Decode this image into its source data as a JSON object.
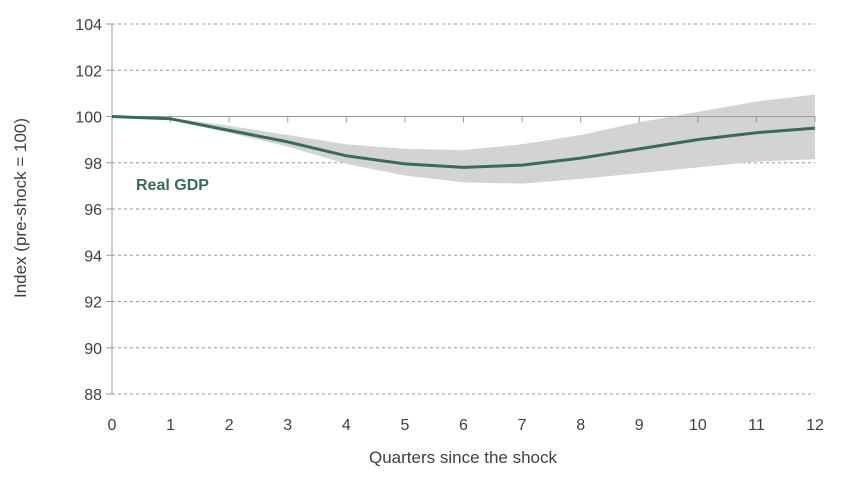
{
  "chart_data": {
    "type": "line",
    "title": "",
    "xlabel": "Quarters since the shock",
    "ylabel": "Index (pre-shock = 100)",
    "x": [
      0,
      1,
      2,
      3,
      4,
      5,
      6,
      7,
      8,
      9,
      10,
      11,
      12
    ],
    "xlim": [
      0,
      12
    ],
    "ylim": [
      88,
      104
    ],
    "yticks": [
      88,
      90,
      92,
      94,
      96,
      98,
      100,
      102,
      104
    ],
    "xticks": [
      0,
      1,
      2,
      3,
      4,
      5,
      6,
      7,
      8,
      9,
      10,
      11,
      12
    ],
    "grid": true,
    "series": [
      {
        "name": "Real GDP",
        "color": "#3a6b55",
        "values": [
          100.0,
          99.9,
          99.4,
          98.9,
          98.3,
          97.95,
          97.8,
          97.9,
          98.2,
          98.6,
          99.0,
          99.3,
          99.5
        ]
      }
    ],
    "band": {
      "color": "#d3d3d3",
      "upper": [
        100.0,
        99.95,
        99.6,
        99.2,
        98.8,
        98.6,
        98.55,
        98.8,
        99.2,
        99.75,
        100.2,
        100.65,
        100.95
      ],
      "lower": [
        100.0,
        99.85,
        99.3,
        98.7,
        97.95,
        97.45,
        97.15,
        97.1,
        97.3,
        97.55,
        97.8,
        98.05,
        98.15
      ]
    }
  }
}
